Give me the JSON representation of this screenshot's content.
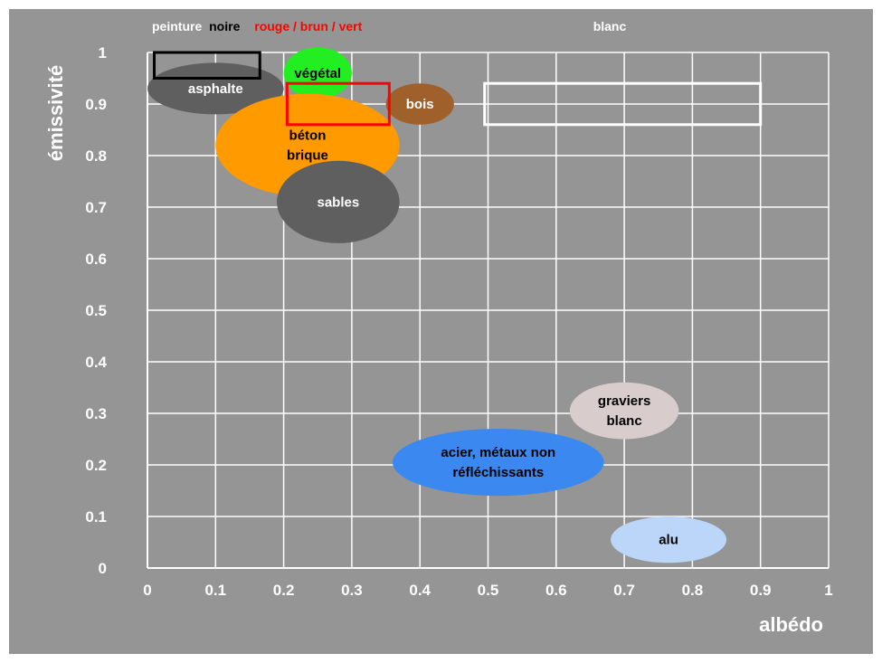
{
  "chart_data": {
    "type": "scatter",
    "title": "",
    "xlabel": "albédo",
    "ylabel": "émissivité",
    "xlim": [
      0,
      1
    ],
    "ylim": [
      0,
      1
    ],
    "grid": true,
    "x_ticks": [
      "0",
      "0.1",
      "0.2",
      "0.3",
      "0.4",
      "0.5",
      "0.6",
      "0.7",
      "0.8",
      "0.9",
      "1"
    ],
    "y_ticks": [
      "0",
      "0.1",
      "0.2",
      "0.3",
      "0.4",
      "0.5",
      "0.6",
      "0.7",
      "0.8",
      "0.9",
      "1"
    ],
    "header": {
      "peinture": "peinture",
      "noire": "noire",
      "rouge": "rouge / brun / vert",
      "blanc": "blanc"
    },
    "colors": {
      "background": "#959595",
      "grid": "#ffffff",
      "noire": "#000000",
      "rouge": "#ff0000",
      "blanc": "#ffffff"
    },
    "materials": [
      {
        "id": "asphalte",
        "lines": [
          "asphalte"
        ],
        "x": [
          0.0,
          0.2
        ],
        "y": [
          0.88,
          0.98
        ],
        "color": "#5f5f5f",
        "text_color": "#ffffff"
      },
      {
        "id": "vegetal",
        "lines": [
          "végétal"
        ],
        "x": [
          0.2,
          0.3
        ],
        "y": [
          0.91,
          1.01
        ],
        "color": "#22ee22",
        "text_color": "#000000"
      },
      {
        "id": "bois",
        "lines": [
          "bois"
        ],
        "x": [
          0.35,
          0.45
        ],
        "y": [
          0.86,
          0.94
        ],
        "color": "#a0602c",
        "text_color": "#ffffff"
      },
      {
        "id": "beton",
        "lines": [
          "béton",
          "brique"
        ],
        "x": [
          0.1,
          0.37
        ],
        "y": [
          0.72,
          0.92
        ],
        "color": "#ff9a00",
        "text_color": "#000000"
      },
      {
        "id": "sables",
        "lines": [
          "sables"
        ],
        "x": [
          0.19,
          0.37
        ],
        "y": [
          0.63,
          0.79
        ],
        "color": "#5f5f5f",
        "text_color": "#ffffff"
      },
      {
        "id": "graviers",
        "lines": [
          "graviers",
          "blanc"
        ],
        "x": [
          0.62,
          0.78
        ],
        "y": [
          0.25,
          0.36
        ],
        "color": "#d8cccc",
        "text_color": "#000000"
      },
      {
        "id": "acier",
        "lines": [
          "acier, métaux non",
          "réfléchissants"
        ],
        "x": [
          0.36,
          0.67
        ],
        "y": [
          0.14,
          0.27
        ],
        "color": "#3a88f0",
        "text_color": "#000000"
      },
      {
        "id": "alu",
        "lines": [
          "alu"
        ],
        "x": [
          0.68,
          0.85
        ],
        "y": [
          0.01,
          0.1
        ],
        "color": "#bcd6fa",
        "text_color": "#000000"
      }
    ],
    "ranges": [
      {
        "id": "peinture-noire",
        "x": [
          0.01,
          0.165
        ],
        "y": [
          0.95,
          1.0
        ],
        "color": "#000000"
      },
      {
        "id": "peinture-rouge-brun-vert",
        "x": [
          0.205,
          0.355
        ],
        "y": [
          0.86,
          0.94
        ],
        "color": "#ff0000"
      },
      {
        "id": "peinture-blanc",
        "x": [
          0.495,
          0.9
        ],
        "y": [
          0.86,
          0.94
        ],
        "color": "#ffffff"
      }
    ]
  }
}
